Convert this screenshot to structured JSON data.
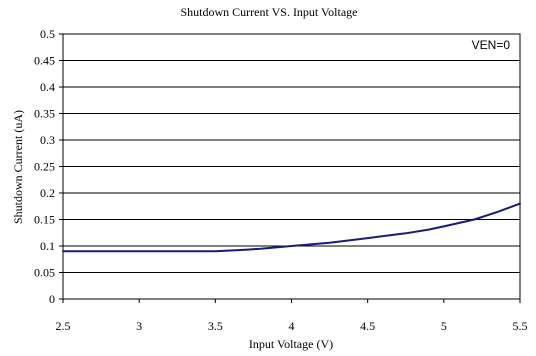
{
  "chart_data": {
    "type": "line",
    "title": "Shutdown Current VS. Input Voltage",
    "xlabel": "Input Voltage (V)",
    "ylabel": "Shutdown Current  (uA)",
    "xlim": [
      2.5,
      5.5
    ],
    "ylim": [
      0,
      0.5
    ],
    "xticks": [
      "2.5",
      "3",
      "3.5",
      "4",
      "4.5",
      "5",
      "5.5"
    ],
    "yticks": [
      "0",
      "0.05",
      "0.1",
      "0.15",
      "0.2",
      "0.25",
      "0.3",
      "0.35",
      "0.4",
      "0.45",
      "0.5"
    ],
    "grid": "horizontal",
    "annotation": "VEN=0",
    "series": [
      {
        "color": "#1a1a7a",
        "x": [
          2.5,
          3.0,
          3.3,
          3.5,
          3.7,
          3.8,
          4.0,
          4.25,
          4.5,
          4.75,
          4.9,
          5.0,
          5.2,
          5.35,
          5.5
        ],
        "y": [
          0.09,
          0.09,
          0.09,
          0.09,
          0.093,
          0.095,
          0.1,
          0.106,
          0.115,
          0.124,
          0.131,
          0.137,
          0.15,
          0.164,
          0.18
        ]
      }
    ]
  }
}
